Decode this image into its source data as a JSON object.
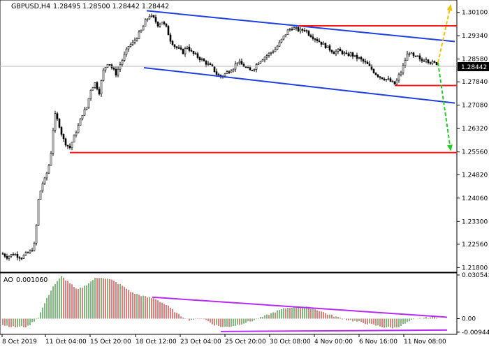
{
  "header": {
    "symbol_timeframe": "GBPUSD,H4",
    "ohlc": "1.28495 1.28500 1.28442 1.28442"
  },
  "ao_header": {
    "name": "AO",
    "value": "0.001060"
  },
  "colors": {
    "candle": "#000000",
    "channel": "#1f3fe0",
    "support_resistance": "#ff1a1a",
    "forecast_up": "#f2c200",
    "forecast_down": "#22cc22",
    "divergence": "#b62cf2",
    "ao_up": "#2a8a2a",
    "ao_down": "#c42a2a",
    "current_price_bg": "#000000",
    "current_price_text": "#ffffff"
  },
  "chart_data": [
    {
      "type": "candlestick",
      "title": "GBPUSD,H4",
      "ylim": [
        1.2165,
        1.305
      ],
      "y_ticks": [
        "1.30100",
        "1.29340",
        "1.28580",
        "1.27840",
        "1.27080",
        "1.26320",
        "1.25560",
        "1.24820",
        "1.24060",
        "1.23300",
        "1.22560",
        "1.21800"
      ],
      "current_price": "1.28442",
      "x_ticks": [
        "8 Oct 2019",
        "11 Oct 04:00",
        "15 Oct 20:00",
        "18 Oct 12:00",
        "23 Oct 04:00",
        "25 Oct 20:00",
        "30 Oct 08:00",
        "4 Nov 00:00",
        "6 Nov 16:00",
        "11 Nov 08:00"
      ],
      "close_path": [
        [
          0,
          1.223
        ],
        [
          10,
          1.2215
        ],
        [
          20,
          1.2225
        ],
        [
          30,
          1.2212
        ],
        [
          38,
          1.2225
        ],
        [
          45,
          1.2235
        ],
        [
          50,
          1.226
        ],
        [
          55,
          1.24
        ],
        [
          60,
          1.245
        ],
        [
          65,
          1.247
        ],
        [
          72,
          1.253
        ],
        [
          78,
          1.268
        ],
        [
          84,
          1.265
        ],
        [
          90,
          1.26
        ],
        [
          95,
          1.258
        ],
        [
          100,
          1.257
        ],
        [
          105,
          1.26
        ],
        [
          112,
          1.264
        ],
        [
          118,
          1.268
        ],
        [
          124,
          1.27
        ],
        [
          130,
          1.276
        ],
        [
          136,
          1.278
        ],
        [
          142,
          1.275
        ],
        [
          148,
          1.282
        ],
        [
          155,
          1.285
        ],
        [
          160,
          1.283
        ],
        [
          166,
          1.281
        ],
        [
          172,
          1.284
        ],
        [
          178,
          1.287
        ],
        [
          184,
          1.29
        ],
        [
          190,
          1.291
        ],
        [
          196,
          1.293
        ],
        [
          202,
          1.295
        ],
        [
          208,
          1.298
        ],
        [
          214,
          1.3
        ],
        [
          220,
          1.299
        ],
        [
          226,
          1.297
        ],
        [
          232,
          1.298
        ],
        [
          238,
          1.296
        ],
        [
          244,
          1.292
        ],
        [
          250,
          1.29
        ],
        [
          256,
          1.289
        ],
        [
          262,
          1.288
        ],
        [
          268,
          1.29
        ],
        [
          274,
          1.288
        ],
        [
          280,
          1.287
        ],
        [
          286,
          1.286
        ],
        [
          292,
          1.285
        ],
        [
          298,
          1.284
        ],
        [
          304,
          1.283
        ],
        [
          310,
          1.281
        ],
        [
          316,
          1.28
        ],
        [
          322,
          1.281
        ],
        [
          328,
          1.282
        ],
        [
          334,
          1.283
        ],
        [
          340,
          1.285
        ],
        [
          346,
          1.284
        ],
        [
          352,
          1.283
        ],
        [
          358,
          1.282
        ],
        [
          364,
          1.283
        ],
        [
          370,
          1.285
        ],
        [
          376,
          1.286
        ],
        [
          382,
          1.287
        ],
        [
          388,
          1.288
        ],
        [
          394,
          1.289
        ],
        [
          400,
          1.291
        ],
        [
          406,
          1.293
        ],
        [
          412,
          1.295
        ],
        [
          418,
          1.296
        ],
        [
          424,
          1.2955
        ],
        [
          430,
          1.295
        ],
        [
          436,
          1.2955
        ],
        [
          442,
          1.294
        ],
        [
          448,
          1.293
        ],
        [
          454,
          1.292
        ],
        [
          460,
          1.291
        ],
        [
          466,
          1.29
        ],
        [
          472,
          1.289
        ],
        [
          478,
          1.288
        ],
        [
          484,
          1.2885
        ],
        [
          490,
          1.288
        ],
        [
          496,
          1.287
        ],
        [
          502,
          1.2875
        ],
        [
          508,
          1.2865
        ],
        [
          514,
          1.286
        ],
        [
          520,
          1.285
        ],
        [
          526,
          1.284
        ],
        [
          532,
          1.2825
        ],
        [
          538,
          1.281
        ],
        [
          544,
          1.28
        ],
        [
          550,
          1.2795
        ],
        [
          556,
          1.279
        ],
        [
          562,
          1.278
        ],
        [
          566,
          1.2775
        ],
        [
          570,
          1.28
        ],
        [
          574,
          1.2815
        ],
        [
          578,
          1.284
        ],
        [
          582,
          1.287
        ],
        [
          586,
          1.288
        ],
        [
          590,
          1.287
        ],
        [
          594,
          1.286
        ],
        [
          598,
          1.2865
        ],
        [
          602,
          1.285
        ],
        [
          606,
          1.2855
        ],
        [
          610,
          1.286
        ],
        [
          614,
          1.285
        ],
        [
          618,
          1.2846
        ],
        [
          622,
          1.2844
        ],
        [
          626,
          1.2844
        ]
      ],
      "channel_lines": [
        {
          "from": [
            "18 Oct 12:00",
            1.3015
          ],
          "to": [
            "11 Nov 08:00+",
            1.2915
          ]
        },
        {
          "from": [
            "18 Oct 12:00",
            1.283
          ],
          "to": [
            "11 Nov 08:00+",
            1.2715
          ]
        }
      ],
      "horizontal_levels": [
        1.2966,
        1.2772,
        1.2554
      ],
      "forecast_arrows": [
        {
          "direction": "up",
          "from": 1.2846,
          "to": 1.305
        },
        {
          "direction": "down",
          "from": 1.2846,
          "to": 1.2554
        }
      ]
    },
    {
      "type": "bar",
      "title": "AO 0.001060",
      "ylim": [
        -0.011,
        0.032
      ],
      "y_ticks": [
        "0.030543",
        "0.00",
        "-0.009445"
      ],
      "profile": [
        [
          0,
          -0.004
        ],
        [
          20,
          -0.006
        ],
        [
          40,
          -0.0055
        ],
        [
          55,
          0.001
        ],
        [
          65,
          0.012
        ],
        [
          75,
          0.022
        ],
        [
          88,
          0.0295
        ],
        [
          100,
          0.025
        ],
        [
          110,
          0.02
        ],
        [
          122,
          0.023
        ],
        [
          135,
          0.028
        ],
        [
          145,
          0.029
        ],
        [
          160,
          0.027
        ],
        [
          175,
          0.023
        ],
        [
          190,
          0.018
        ],
        [
          210,
          0.015
        ],
        [
          222,
          0.014
        ],
        [
          240,
          0.009
        ],
        [
          255,
          0.003
        ],
        [
          270,
          -0.001
        ],
        [
          290,
          0.0005
        ],
        [
          305,
          -0.004
        ],
        [
          320,
          -0.006
        ],
        [
          335,
          -0.005
        ],
        [
          350,
          -0.003
        ],
        [
          365,
          -0.001
        ],
        [
          380,
          0.002
        ],
        [
          395,
          0.005
        ],
        [
          410,
          0.0075
        ],
        [
          425,
          0.0085
        ],
        [
          440,
          0.008
        ],
        [
          455,
          0.006
        ],
        [
          470,
          0.003
        ],
        [
          490,
          0.0
        ],
        [
          510,
          -0.002
        ],
        [
          530,
          -0.004
        ],
        [
          550,
          -0.006
        ],
        [
          566,
          -0.0065
        ],
        [
          578,
          -0.004
        ],
        [
          590,
          -0.001
        ],
        [
          605,
          0.0005
        ],
        [
          618,
          0.001
        ],
        [
          626,
          0.0011
        ]
      ],
      "divergence_lines": [
        {
          "from": 0.015,
          "to": 0.001
        },
        {
          "from": -0.009,
          "to": -0.008
        }
      ]
    }
  ]
}
